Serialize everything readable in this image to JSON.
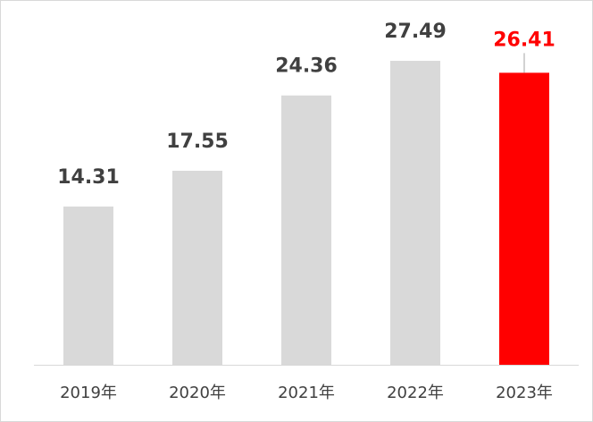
{
  "chart_data": {
    "type": "bar",
    "categories": [
      "2019年",
      "2020年",
      "2021年",
      "2022年",
      "2023年"
    ],
    "values": [
      14.31,
      17.55,
      24.36,
      27.49,
      26.41
    ],
    "colors": [
      "#d9d9d9",
      "#d9d9d9",
      "#d9d9d9",
      "#d9d9d9",
      "#ff0000"
    ],
    "label_colors": [
      "#404040",
      "#404040",
      "#404040",
      "#404040",
      "#ff0000"
    ],
    "ylim": [
      0,
      30
    ]
  }
}
